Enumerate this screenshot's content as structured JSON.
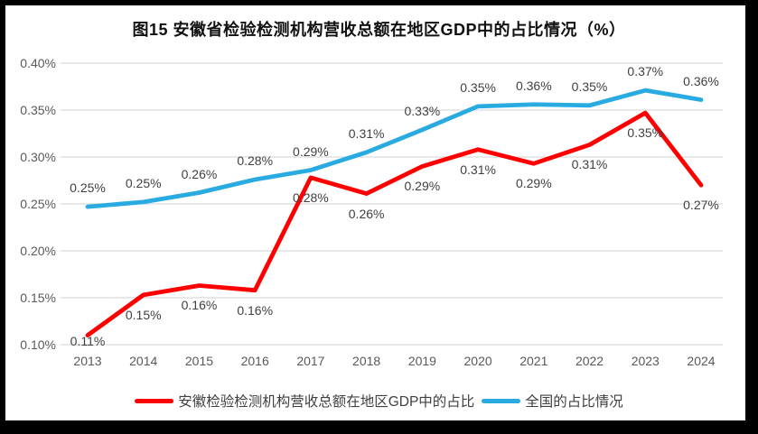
{
  "title": "图15 安徽省检验检测机构营收总额在地区GDP中的占比情况（%）",
  "chart_data": {
    "type": "line",
    "title": "图15 安徽省检验检测机构营收总额在地区GDP中的占比情况（%）",
    "unit": "%",
    "categories": [
      "2013",
      "2014",
      "2015",
      "2016",
      "2017",
      "2018",
      "2019",
      "2020",
      "2021",
      "2022",
      "2023",
      "2024"
    ],
    "series": [
      {
        "name": "安徽检验检测机构营收总额在地区GDP中的占比",
        "color": "#FF0000",
        "values": [
          0.11,
          0.15,
          0.16,
          0.16,
          0.28,
          0.26,
          0.29,
          0.31,
          0.29,
          0.31,
          0.35,
          0.27
        ],
        "labels": [
          "0.11%",
          "0.15%",
          "0.16%",
          "0.16%",
          "0.28%",
          "0.26%",
          "0.29%",
          "0.31%",
          "0.29%",
          "0.31%",
          "0.35%",
          "0.27%"
        ],
        "plot_values": [
          0.11,
          0.153,
          0.163,
          0.158,
          0.278,
          0.261,
          0.29,
          0.308,
          0.293,
          0.313,
          0.347,
          0.27
        ],
        "label_position": "below"
      },
      {
        "name": "全国的占比情况",
        "color": "#29ABE2",
        "values": [
          0.25,
          0.25,
          0.26,
          0.28,
          0.29,
          0.31,
          0.33,
          0.35,
          0.36,
          0.35,
          0.37,
          0.36
        ],
        "labels": [
          "0.25%",
          "0.25%",
          "0.26%",
          "0.28%",
          "0.29%",
          "0.31%",
          "0.33%",
          "0.35%",
          "0.36%",
          "0.35%",
          "0.37%",
          "0.36%"
        ],
        "plot_values": [
          0.247,
          0.252,
          0.262,
          0.276,
          0.286,
          0.305,
          0.329,
          0.354,
          0.356,
          0.355,
          0.371,
          0.361
        ],
        "label_position": "above"
      }
    ],
    "ylim": [
      0.1,
      0.4
    ],
    "yticks": [
      {
        "value": 0.4,
        "label": "0.40%"
      },
      {
        "value": 0.35,
        "label": "0.35%"
      },
      {
        "value": 0.3,
        "label": "0.30%"
      },
      {
        "value": 0.25,
        "label": "0.25%"
      },
      {
        "value": 0.2,
        "label": "0.20%"
      },
      {
        "value": 0.15,
        "label": "0.15%"
      },
      {
        "value": 0.1,
        "label": "0.10%"
      }
    ],
    "grid": "horizontal",
    "legend_position": "bottom"
  },
  "colors": {
    "anhui_line": "#FF0000",
    "national_line": "#29ABE2",
    "gridline": "#D9D9D9",
    "axis_text": "#595959",
    "data_label_text": "#404040",
    "title_text": "#111111",
    "frame": "#000000",
    "background": "#FFFFFF"
  }
}
